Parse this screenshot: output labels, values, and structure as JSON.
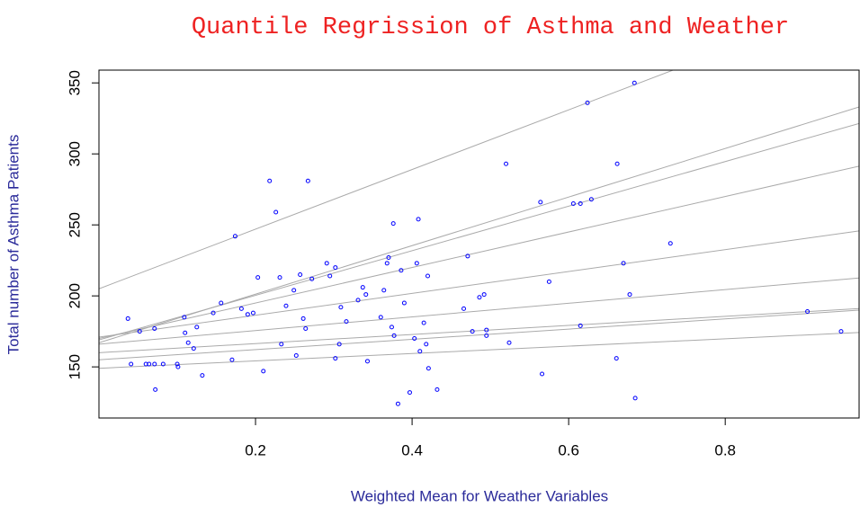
{
  "chart_data": {
    "type": "scatter",
    "title": "Quantile Regrission of Asthma and Weather",
    "xlabel": "Weighted Mean for Weather Variables",
    "ylabel": "Total number of Asthma Patients",
    "xlim": [
      0,
      0.971
    ],
    "ylim": [
      114,
      359
    ],
    "xticks": [
      0.2,
      0.4,
      0.6,
      0.8
    ],
    "yticks": [
      150,
      200,
      250,
      300,
      350
    ],
    "point_color": "#0000ff",
    "line_color": "#aaaaaa",
    "x": [
      0.037,
      0.041,
      0.052,
      0.06,
      0.064,
      0.071,
      0.071,
      0.072,
      0.082,
      0.1,
      0.101,
      0.109,
      0.11,
      0.114,
      0.121,
      0.125,
      0.132,
      0.146,
      0.156,
      0.17,
      0.174,
      0.182,
      0.19,
      0.197,
      0.203,
      0.21,
      0.218,
      0.226,
      0.231,
      0.233,
      0.239,
      0.249,
      0.252,
      0.257,
      0.261,
      0.264,
      0.267,
      0.272,
      0.291,
      0.295,
      0.302,
      0.302,
      0.307,
      0.309,
      0.316,
      0.331,
      0.337,
      0.341,
      0.343,
      0.36,
      0.364,
      0.368,
      0.37,
      0.374,
      0.376,
      0.377,
      0.382,
      0.386,
      0.39,
      0.397,
      0.403,
      0.406,
      0.408,
      0.41,
      0.415,
      0.418,
      0.42,
      0.421,
      0.432,
      0.466,
      0.471,
      0.477,
      0.486,
      0.492,
      0.495,
      0.495,
      0.52,
      0.524,
      0.564,
      0.566,
      0.575,
      0.606,
      0.615,
      0.615,
      0.624,
      0.629,
      0.661,
      0.662,
      0.67,
      0.678,
      0.684,
      0.685,
      0.73,
      0.905,
      0.948
    ],
    "y": [
      184,
      152,
      175,
      152,
      152,
      177,
      152,
      134,
      152,
      152,
      150,
      185,
      174,
      167,
      163,
      178,
      144,
      188,
      195,
      155,
      242,
      191,
      187,
      188,
      213,
      147,
      281,
      259,
      213,
      166,
      193,
      204,
      158,
      215,
      184,
      177,
      281,
      212,
      223,
      214,
      220,
      156,
      166,
      192,
      182,
      197,
      206,
      201,
      154,
      185,
      204,
      223,
      227,
      178,
      251,
      172,
      124,
      218,
      195,
      132,
      170,
      223,
      254,
      161,
      181,
      166,
      214,
      149,
      134,
      191,
      228,
      175,
      199,
      201,
      172,
      176,
      293,
      167,
      266,
      145,
      210,
      265,
      265,
      179,
      336,
      268,
      156,
      293,
      223,
      201,
      350,
      128,
      237,
      189,
      175
    ],
    "lines": [
      {
        "intercept": 205,
        "slope": 210
      },
      {
        "intercept": 167,
        "slope": 171
      },
      {
        "intercept": 169,
        "slope": 157
      },
      {
        "intercept": 170,
        "slope": 125
      },
      {
        "intercept": 171,
        "slope": 77
      },
      {
        "intercept": 166,
        "slope": 48
      },
      {
        "intercept": 160,
        "slope": 32
      },
      {
        "intercept": 155,
        "slope": 36
      },
      {
        "intercept": 149,
        "slope": 26
      }
    ]
  }
}
